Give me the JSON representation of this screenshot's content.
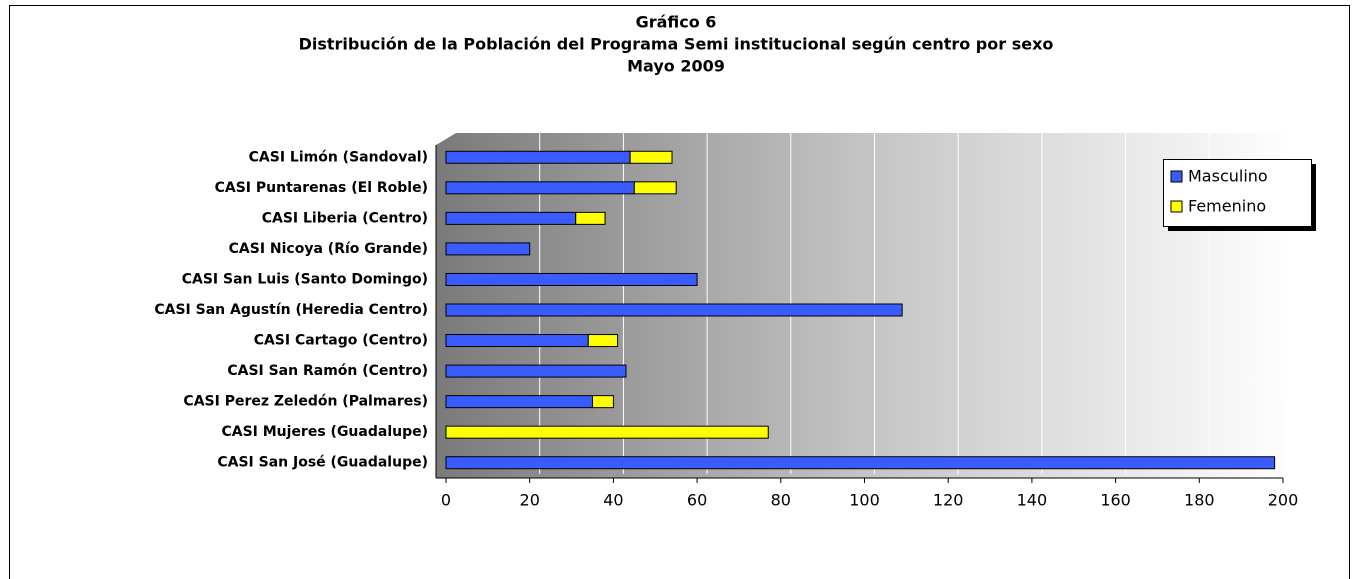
{
  "chart_data": {
    "type": "bar",
    "orientation": "horizontal",
    "stacked": true,
    "title": [
      "Gráfico 6",
      "Distribución de la Población del Programa Semi institucional según centro por sexo",
      "Mayo 2009"
    ],
    "categories": [
      "CASI Limón (Sandoval)",
      "CASI Puntarenas (El Roble)",
      "CASI Liberia (Centro)",
      "CASI Nicoya (Río Grande)",
      "CASI San Luis (Santo Domingo)",
      "CASI San Agustín (Heredia Centro)",
      "CASI Cartago (Centro)",
      "CASI San Ramón (Centro)",
      "CASI Perez  Zeledón (Palmares)",
      "CASI Mujeres (Guadalupe)",
      "CASI San José (Guadalupe)"
    ],
    "series": [
      {
        "name": "Masculino",
        "color": "#3a5cff",
        "values": [
          44,
          45,
          31,
          20,
          60,
          109,
          34,
          43,
          35,
          0,
          198
        ]
      },
      {
        "name": "Femenino",
        "color": "#ffff00",
        "values": [
          10,
          10,
          7,
          0,
          0,
          0,
          7,
          0,
          5,
          77,
          0
        ]
      }
    ],
    "xlim": [
      0,
      200
    ],
    "xticks": [
      0,
      20,
      40,
      60,
      80,
      100,
      120,
      140,
      160,
      180,
      200
    ],
    "grid": true,
    "legend": "upper right"
  }
}
